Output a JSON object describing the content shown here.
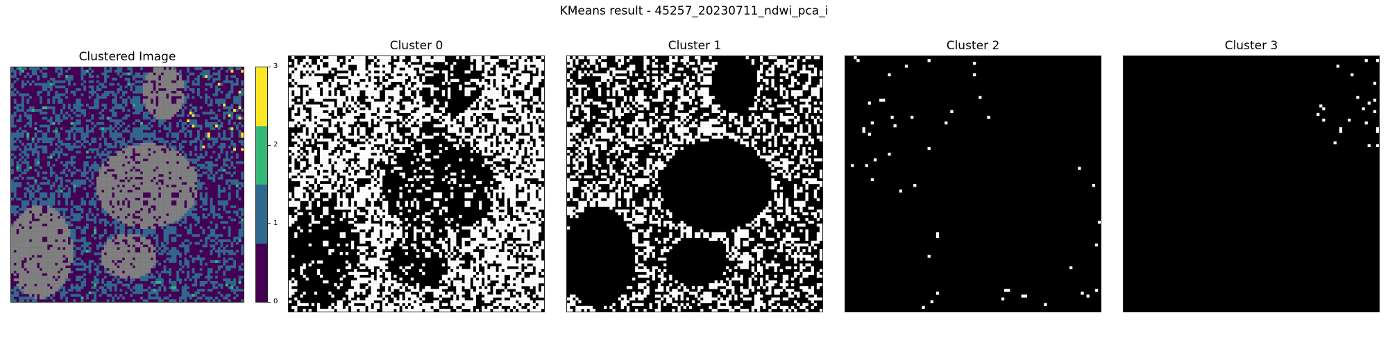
{
  "figure": {
    "suptitle": "KMeans result - 45257_20230711_ndwi_pca_i"
  },
  "chart_data": {
    "type": "heatmap",
    "title": "KMeans result - 45257_20230711_ndwi_pca_i",
    "panels": [
      {
        "title": "Clustered Image",
        "kind": "clustered"
      },
      {
        "title": "Cluster 0",
        "kind": "mask",
        "cluster": 0
      },
      {
        "title": "Cluster 1",
        "kind": "mask",
        "cluster": 1
      },
      {
        "title": "Cluster 2",
        "kind": "mask",
        "cluster": 2
      },
      {
        "title": "Cluster 3",
        "kind": "mask",
        "cluster": 3
      }
    ],
    "colorbar": {
      "ticks": [
        "0",
        "1",
        "2",
        "3"
      ],
      "colors": [
        "#440154",
        "#31688e",
        "#35b779",
        "#fde725"
      ],
      "nodata_color": "#808080"
    }
  }
}
